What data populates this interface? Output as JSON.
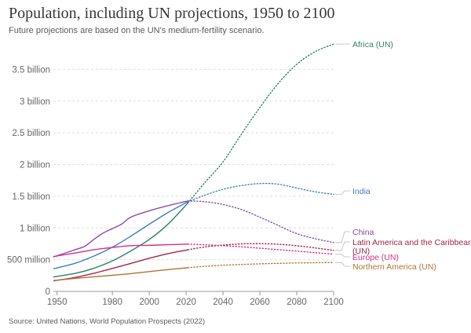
{
  "title": "Population, including UN projections, 1950 to 2100",
  "subtitle": "Future projections are based on the UN's medium-fertility scenario.",
  "source": "Source: United Nations, World Population Prospects (2022)",
  "chart_data": {
    "type": "line",
    "title": "Population, including UN projections, 1950 to 2100",
    "xlabel": "",
    "ylabel": "",
    "xlim": [
      1948,
      2100
    ],
    "ylim": [
      0,
      4000000000
    ],
    "grid": "horizontal",
    "x_ticks": [
      1950,
      1980,
      2000,
      2020,
      2040,
      2060,
      2080,
      2100
    ],
    "x_tick_labels": [
      "1950",
      "1980",
      "2000",
      "2020",
      "2040",
      "2060",
      "2080",
      "2100"
    ],
    "y_ticks": [
      0,
      500000000,
      1000000000,
      1500000000,
      2000000000,
      2500000000,
      3000000000,
      3500000000
    ],
    "y_tick_labels": [
      "0",
      "500 million",
      "1 billion",
      "1.5 billion",
      "2 billion",
      "2.5 billion",
      "3 billion",
      "3.5 billion"
    ],
    "historical_until": 2021,
    "series": [
      {
        "name": "Africa (UN)",
        "color": "#2c8465",
        "x": [
          1948,
          1960,
          1970,
          1980,
          1990,
          2000,
          2010,
          2021,
          2030,
          2040,
          2050,
          2060,
          2070,
          2080,
          2090,
          2100
        ],
        "y": [
          227000000,
          285000000,
          365000000,
          481000000,
          638000000,
          818000000,
          1055000000,
          1394000000,
          1710000000,
          2040000000,
          2480000000,
          2900000000,
          3280000000,
          3580000000,
          3780000000,
          3900000000
        ]
      },
      {
        "name": "India",
        "color": "#3f7dc6",
        "x": [
          1948,
          1960,
          1970,
          1980,
          1990,
          2000,
          2010,
          2021,
          2030,
          2040,
          2050,
          2060,
          2070,
          2080,
          2090,
          2100
        ],
        "y": [
          357000000,
          445000000,
          557000000,
          696000000,
          870000000,
          1059000000,
          1240000000,
          1414000000,
          1515000000,
          1610000000,
          1668000000,
          1700000000,
          1690000000,
          1630000000,
          1570000000,
          1530000000
        ]
      },
      {
        "name": "China",
        "color": "#8a4caf",
        "x": [
          1948,
          1955,
          1960,
          1965,
          1970,
          1975,
          1980,
          1985,
          1990,
          2000,
          2010,
          2021,
          2030,
          2040,
          2050,
          2060,
          2070,
          2080,
          2090,
          2100
        ],
        "y": [
          543000000,
          610000000,
          660000000,
          710000000,
          820000000,
          920000000,
          990000000,
          1060000000,
          1170000000,
          1270000000,
          1350000000,
          1425000000,
          1415000000,
          1370000000,
          1290000000,
          1170000000,
          1040000000,
          910000000,
          830000000,
          770000000
        ]
      },
      {
        "name": "Latin America and the Caribbean (UN)",
        "color": "#a2274a",
        "x": [
          1948,
          1960,
          1970,
          1980,
          1990,
          2000,
          2010,
          2021,
          2030,
          2040,
          2050,
          2060,
          2070,
          2080,
          2090,
          2100
        ],
        "y": [
          165000000,
          220000000,
          286000000,
          361000000,
          441000000,
          522000000,
          594000000,
          656000000,
          700000000,
          730000000,
          748000000,
          752000000,
          743000000,
          720000000,
          685000000,
          647000000
        ]
      },
      {
        "name": "Europe (UN)",
        "color": "#d82d8a",
        "x": [
          1948,
          1960,
          1970,
          1980,
          1990,
          2000,
          2010,
          2021,
          2030,
          2040,
          2050,
          2060,
          2070,
          2080,
          2090,
          2100
        ],
        "y": [
          549000000,
          606000000,
          657000000,
          693000000,
          721000000,
          726000000,
          736000000,
          745000000,
          735000000,
          720000000,
          703000000,
          681000000,
          658000000,
          635000000,
          610000000,
          586000000
        ]
      },
      {
        "name": "Northern America (UN)",
        "color": "#b07536",
        "x": [
          1948,
          1960,
          1970,
          1980,
          1990,
          2000,
          2010,
          2021,
          2030,
          2040,
          2050,
          2060,
          2070,
          2080,
          2090,
          2100
        ],
        "y": [
          171000000,
          205000000,
          230000000,
          254000000,
          280000000,
          312000000,
          343000000,
          373000000,
          395000000,
          412000000,
          424000000,
          434000000,
          442000000,
          448000000,
          452000000,
          455000000
        ]
      }
    ]
  }
}
